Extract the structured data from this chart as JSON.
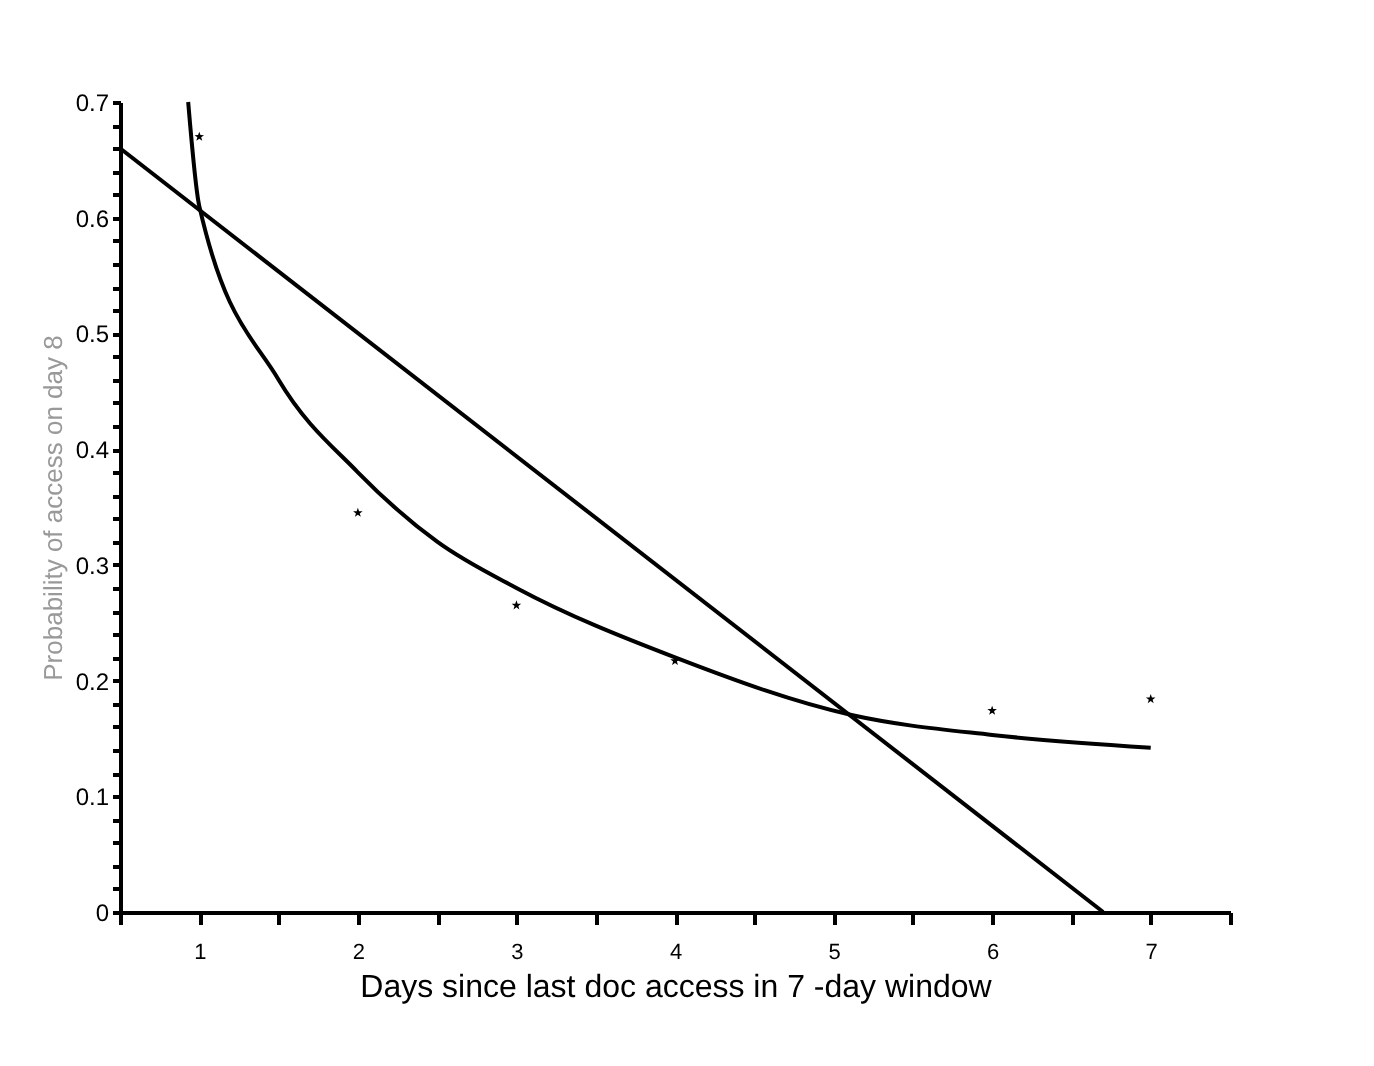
{
  "chart_data": {
    "type": "scatter",
    "xlabel": "Days since last doc access in 7 -day window",
    "ylabel": "Probability of access on day 8",
    "xlim": [
      0.5,
      7.5
    ],
    "ylim": [
      0,
      0.7
    ],
    "xticks": [
      {
        "value": 0.5,
        "label": null
      },
      1,
      {
        "value": 1.5,
        "label": null
      },
      2,
      {
        "value": 2.5,
        "label": null
      },
      3,
      {
        "value": 3.5,
        "label": null
      },
      4,
      {
        "value": 4.5,
        "label": null
      },
      5,
      {
        "value": 5.5,
        "label": null
      },
      6,
      {
        "value": 6.5,
        "label": null
      },
      7,
      {
        "value": 7.5,
        "label": null
      }
    ],
    "yticks": [
      0,
      {
        "value": 0.02,
        "label": null
      },
      {
        "value": 0.04,
        "label": null
      },
      {
        "value": 0.06,
        "label": null
      },
      {
        "value": 0.08,
        "label": null
      },
      0.1,
      {
        "value": 0.12,
        "label": null
      },
      {
        "value": 0.14,
        "label": null
      },
      {
        "value": 0.16,
        "label": null
      },
      {
        "value": 0.18,
        "label": null
      },
      0.2,
      {
        "value": 0.22,
        "label": null
      },
      {
        "value": 0.24,
        "label": null
      },
      {
        "value": 0.26,
        "label": null
      },
      {
        "value": 0.28,
        "label": null
      },
      0.3,
      {
        "value": 0.32,
        "label": null
      },
      {
        "value": 0.34,
        "label": null
      },
      {
        "value": 0.36,
        "label": null
      },
      {
        "value": 0.38,
        "label": null
      },
      0.4,
      {
        "value": 0.42,
        "label": null
      },
      {
        "value": 0.44,
        "label": null
      },
      {
        "value": 0.46,
        "label": null
      },
      {
        "value": 0.48,
        "label": null
      },
      0.5,
      {
        "value": 0.52,
        "label": null
      },
      {
        "value": 0.54,
        "label": null
      },
      {
        "value": 0.56,
        "label": null
      },
      {
        "value": 0.58,
        "label": null
      },
      0.6,
      {
        "value": 0.62,
        "label": null
      },
      {
        "value": 0.64,
        "label": null
      },
      {
        "value": 0.66,
        "label": null
      },
      {
        "value": 0.68,
        "label": null
      },
      0.7
    ],
    "grid": false,
    "series": [
      {
        "marker": "star",
        "color": "#000000",
        "x": [
          1,
          2,
          3,
          4,
          6,
          7
        ],
        "values": [
          0.67,
          0.345,
          0.265,
          0.217,
          0.174,
          0.184
        ]
      },
      {
        "type": "line",
        "line_style": "solid",
        "color": "#000000",
        "x": [
          0.93,
          1.0,
          1.5,
          2,
          2.5,
          3,
          4,
          5.12,
          6,
          7
        ],
        "values": [
          0.7,
          0.61,
          0.46,
          0.38,
          0.32,
          0.28,
          0.22,
          0.17,
          0.153,
          0.142
        ]
      },
      {
        "type": "line",
        "line_style": "solid",
        "color": "#000000",
        "x": [
          0.5,
          6.7
        ],
        "values": [
          0.66,
          0
        ]
      }
    ]
  }
}
